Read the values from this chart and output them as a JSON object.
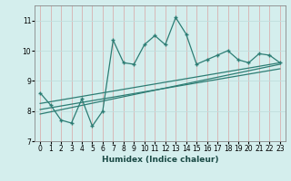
{
  "xlabel": "Humidex (Indice chaleur)",
  "ylabel": "",
  "background_color": "#d4eeed",
  "grid_color": "#c0dedd",
  "line_color": "#2d7d74",
  "xlim": [
    -0.5,
    23.5
  ],
  "ylim": [
    7,
    11.5
  ],
  "yticks": [
    7,
    8,
    9,
    10,
    11
  ],
  "xticks": [
    0,
    1,
    2,
    3,
    4,
    5,
    6,
    7,
    8,
    9,
    10,
    11,
    12,
    13,
    14,
    15,
    16,
    17,
    18,
    19,
    20,
    21,
    22,
    23
  ],
  "main_x": [
    0,
    1,
    2,
    3,
    4,
    5,
    6,
    7,
    8,
    9,
    10,
    11,
    12,
    13,
    14,
    15,
    16,
    17,
    18,
    19,
    20,
    21,
    22,
    23
  ],
  "main_y": [
    8.6,
    8.2,
    7.7,
    7.6,
    8.4,
    7.5,
    8.0,
    10.35,
    9.6,
    9.55,
    10.2,
    10.5,
    10.2,
    11.1,
    10.55,
    9.55,
    9.7,
    9.85,
    10.0,
    9.7,
    9.6,
    9.9,
    9.85,
    9.6
  ],
  "line1_x": [
    0,
    23
  ],
  "line1_y": [
    8.25,
    9.6
  ],
  "line2_x": [
    0,
    23
  ],
  "line2_y": [
    8.05,
    9.4
  ],
  "line3_x": [
    0,
    23
  ],
  "line3_y": [
    7.9,
    9.55
  ]
}
